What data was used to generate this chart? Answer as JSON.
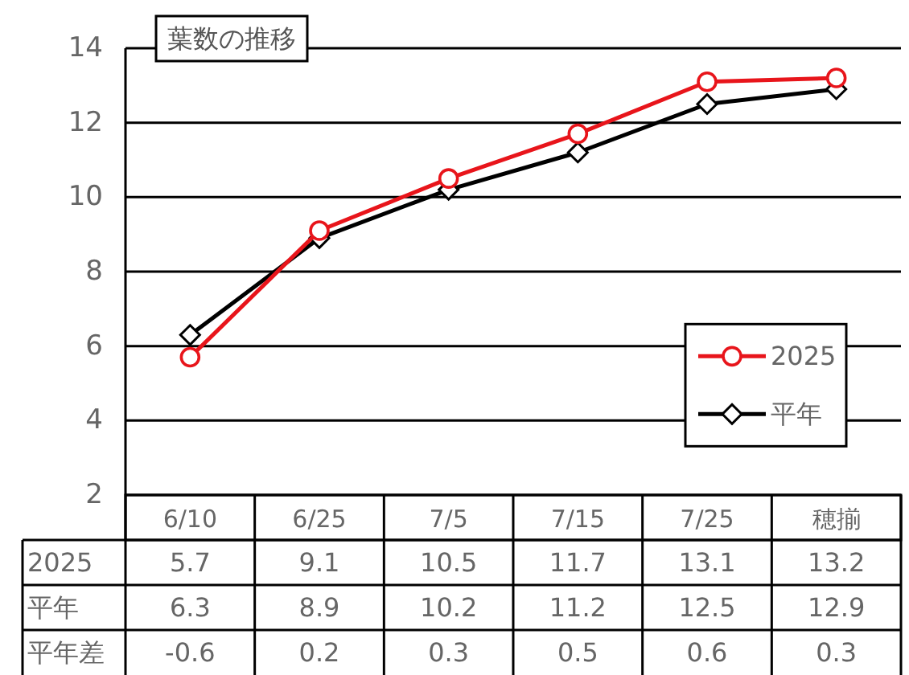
{
  "chart_data": {
    "type": "line",
    "title": "葉数の推移",
    "categories": [
      "6/10",
      "6/25",
      "7/5",
      "7/15",
      "7/25",
      "穂揃"
    ],
    "series": [
      {
        "name": "2025",
        "color": "#e8151b",
        "marker": "circle",
        "values": [
          5.7,
          9.1,
          10.5,
          11.7,
          13.1,
          13.2
        ]
      },
      {
        "name": "平年",
        "color": "#000000",
        "marker": "diamond",
        "values": [
          6.3,
          8.9,
          10.2,
          11.2,
          12.5,
          12.9
        ]
      }
    ],
    "ylim": [
      2,
      14
    ],
    "yticks": [
      2,
      4,
      6,
      8,
      10,
      12,
      14
    ],
    "grid": "y",
    "legend": "bottom right",
    "data_labels": true,
    "annotations": [
      "平年差",
      "-0.6",
      "0.2",
      "0.3",
      "0.5",
      "0.6",
      "0.3"
    ]
  }
}
